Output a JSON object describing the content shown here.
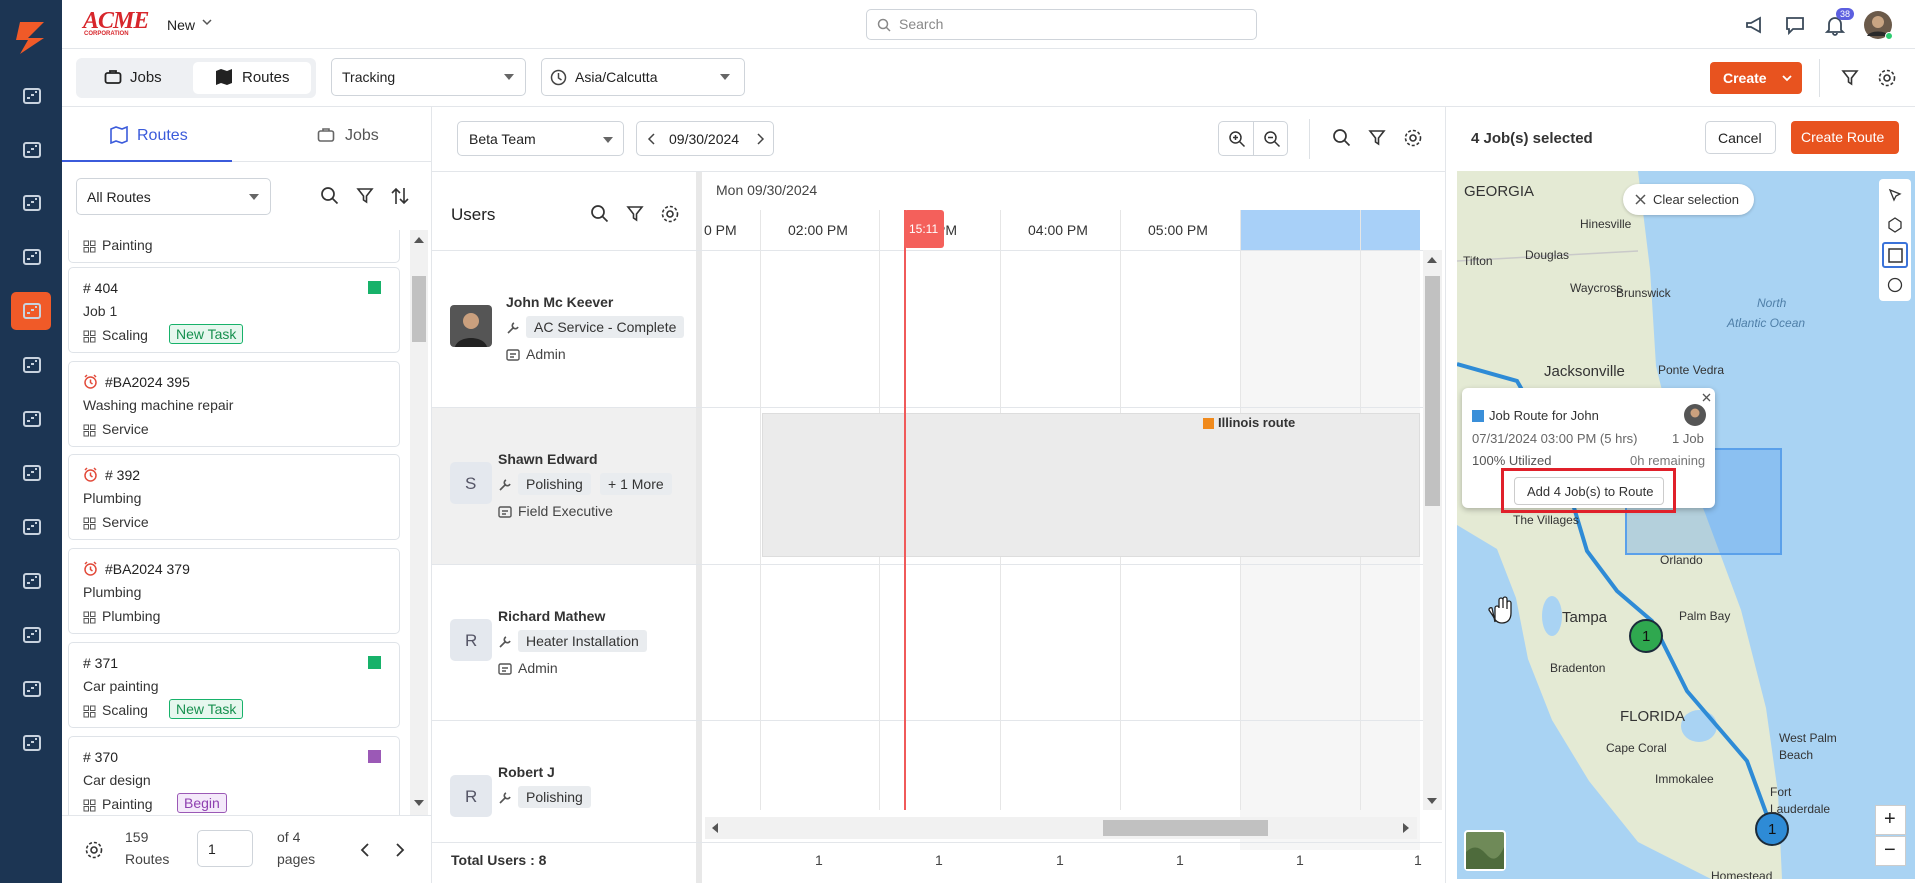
{
  "header": {
    "logo": "ACME",
    "logo_sub": "CORPORATION",
    "new_menu": "New",
    "search": "Search",
    "notification_count": "38"
  },
  "toolbar": {
    "tabs": [
      "Jobs",
      "Routes"
    ],
    "tracking": "Tracking",
    "timezone": "Asia/Calcutta",
    "create": "Create"
  },
  "left_panel": {
    "tabs": [
      "Routes",
      "Jobs"
    ],
    "filter": "All Routes",
    "cards": [
      {
        "category": "Painting"
      },
      {
        "id": "# 404",
        "title": "Job 1",
        "category": "Scaling",
        "tag": "New Task",
        "color": "#17b26a"
      },
      {
        "id": "#BA2024 395",
        "title": "Washing machine repair",
        "category": "Service",
        "alarm": true
      },
      {
        "id": "# 392",
        "title": "Plumbing",
        "category": "Service",
        "alarm": true
      },
      {
        "id": "#BA2024 379",
        "title": "Plumbing",
        "category": "Plumbing",
        "alarm": true
      },
      {
        "id": "# 371",
        "title": "Car painting",
        "category": "Scaling",
        "tag": "New Task",
        "color": "#17b26a"
      },
      {
        "id": "# 370",
        "title": "Car design",
        "category": "Painting",
        "tag": "Begin",
        "color": "#9b59b6"
      }
    ],
    "footer": {
      "count": "159",
      "count_label": "Routes",
      "page": "1",
      "of_pages": "of 4",
      "pages_label": "pages"
    }
  },
  "schedule": {
    "team": "Beta Team",
    "date": "09/30/2024",
    "day": "Mon 09/30/2024",
    "users_title": "Users",
    "time_labels": [
      "0 PM",
      "02:00 PM",
      "PM",
      "04:00 PM",
      "05:00 PM"
    ],
    "current_time": "15:11",
    "route_label": "Illinois route",
    "users": [
      {
        "name": "John Mc Keever",
        "skill": "AC Service - Complete",
        "role": "Admin"
      },
      {
        "name": "Shawn Edward",
        "initial": "S",
        "skill": "Polishing",
        "extra": "+ 1 More",
        "role": "Field Executive"
      },
      {
        "name": "Richard Mathew",
        "initial": "R",
        "skill": "Heater Installation",
        "role": "Admin"
      },
      {
        "name": "Robert J",
        "initial": "R",
        "skill": "Polishing"
      }
    ],
    "total_users": "Total Users : 8",
    "counts": [
      "1",
      "1",
      "1",
      "1",
      "1",
      "1"
    ]
  },
  "map_panel": {
    "selected": "4 Job(s) selected",
    "cancel": "Cancel",
    "create_route": "Create Route",
    "clear_selection": "Clear selection",
    "popup": {
      "title": "Job Route for John",
      "time": "07/31/2024 03:00 PM (5 hrs)",
      "jobs": "1 Job",
      "utilized": "100% Utilized",
      "remaining": "0h remaining",
      "button": "Add 4 Job(s) to Route"
    },
    "labels": [
      "GEORGIA",
      "Hinesville",
      "Tifton",
      "Douglas",
      "Waycross",
      "Brunswick",
      "North",
      "Atlantic Ocean",
      "Jacksonville",
      "Ponte Vedra",
      "The Villages",
      "Orlando",
      "Tampa",
      "Palm Bay",
      "Bradenton",
      "FLORIDA",
      "Cape Coral",
      "Immokalee",
      "West Palm",
      "Beach",
      "Fort",
      "Lauderdale",
      "Homestead"
    ],
    "markers": [
      "1",
      "1"
    ],
    "zoom": [
      "+",
      "−"
    ]
  }
}
